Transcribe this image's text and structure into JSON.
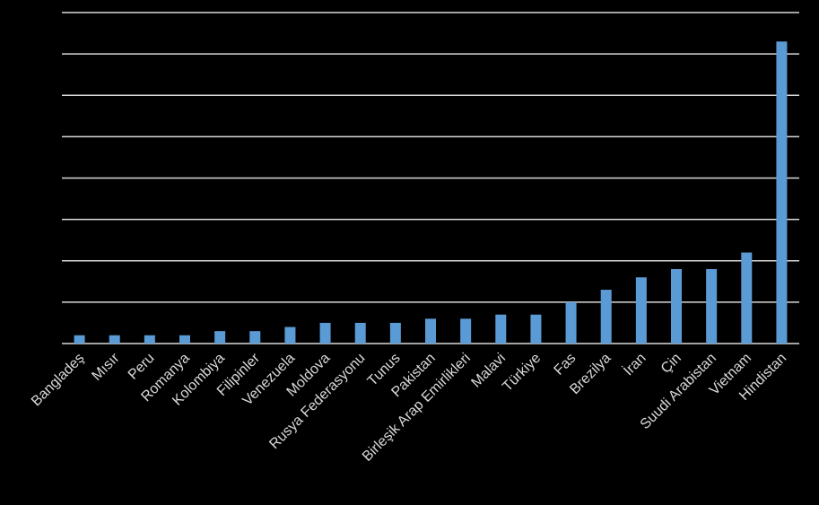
{
  "chart_data": {
    "type": "bar",
    "title": "",
    "xlabel": "",
    "ylabel": "",
    "ylim": [
      0,
      8
    ],
    "yticks": [
      0,
      1,
      2,
      3,
      4,
      5,
      6,
      7,
      8
    ],
    "grid": true,
    "legend": "none",
    "y_tick_labels_shown": false,
    "categories": [
      "Bangladeş",
      "Mısır",
      "Peru",
      "Romanya",
      "Kolombiya",
      "Filipinler",
      "Venezuela",
      "Moldova",
      "Rusya Federasyonu",
      "Tunus",
      "Pakistan",
      "Birleşik Arap Emirlikleri",
      "Malavi",
      "Türkiye",
      "Fas",
      "Brezilya",
      "İran",
      "Çin",
      "Suudi Arabistan",
      "Vietnam",
      "Hindistan"
    ],
    "values": [
      0.2,
      0.2,
      0.2,
      0.2,
      0.3,
      0.3,
      0.4,
      0.5,
      0.5,
      0.5,
      0.6,
      0.6,
      0.7,
      0.7,
      1.0,
      1.3,
      1.6,
      1.8,
      1.8,
      2.2,
      7.3
    ],
    "colors": {
      "bar": "#5b9bd5",
      "grid": "#d9d9d9",
      "background": "#000000",
      "text": "#d9d9d9"
    }
  }
}
